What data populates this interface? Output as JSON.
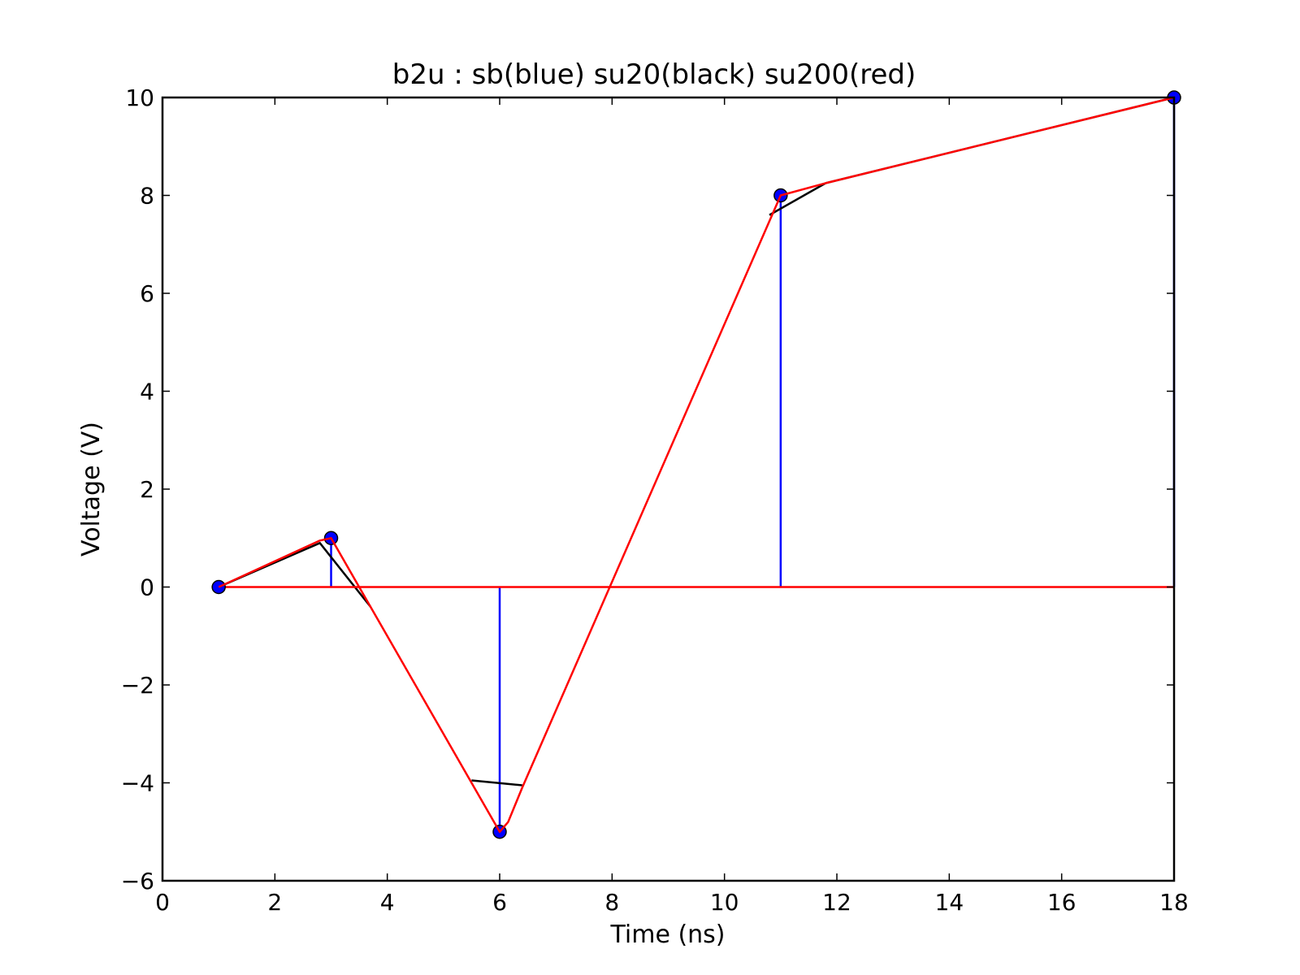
{
  "chart_data": {
    "type": "line",
    "title": "b2u : sb(blue) su20(black) su200(red)",
    "xlabel": "Time (ns)",
    "ylabel": "Voltage (V)",
    "xlim": [
      0,
      18
    ],
    "ylim": [
      -6,
      10
    ],
    "xticks": [
      0,
      2,
      4,
      6,
      8,
      10,
      12,
      14,
      16,
      18
    ],
    "yticks": [
      -6,
      -4,
      -2,
      0,
      2,
      4,
      6,
      8,
      10
    ],
    "xtick_labels": [
      "0",
      "2",
      "4",
      "6",
      "8",
      "10",
      "12",
      "14",
      "16",
      "18"
    ],
    "ytick_labels": [
      "−6",
      "−4",
      "−2",
      "0",
      "2",
      "4",
      "6",
      "8",
      "10"
    ],
    "grid": false,
    "legend": "none",
    "colors": {
      "sb": "#0000ff",
      "su20": "#000000",
      "su200": "#ff0000"
    },
    "sb_points": {
      "x": [
        1,
        3,
        6,
        11,
        18
      ],
      "y": [
        0,
        1,
        -5,
        8,
        10
      ]
    },
    "sb_stem_baseline": {
      "x": [
        1,
        18
      ],
      "y": 0
    },
    "su20_segments": [
      {
        "x": [
          1,
          2.8,
          3.7
        ],
        "y": [
          0,
          0.9,
          -0.4
        ]
      },
      {
        "x": [
          5.5,
          6.4
        ],
        "y": [
          -3.95,
          -4.05
        ]
      },
      {
        "x": [
          10.8,
          11.8
        ],
        "y": [
          7.6,
          8.25
        ]
      },
      {
        "x": [
          11.8,
          18
        ],
        "y": [
          8.25,
          10
        ]
      }
    ],
    "su200_line": {
      "x": [
        1,
        2.8,
        3.0,
        3.7,
        6.0,
        6.15,
        6.4,
        11.0,
        11.8,
        18.0
      ],
      "y": [
        0,
        0.95,
        1.0,
        -0.4,
        -5.0,
        -4.8,
        -4.1,
        8.0,
        8.25,
        10.0
      ]
    }
  }
}
